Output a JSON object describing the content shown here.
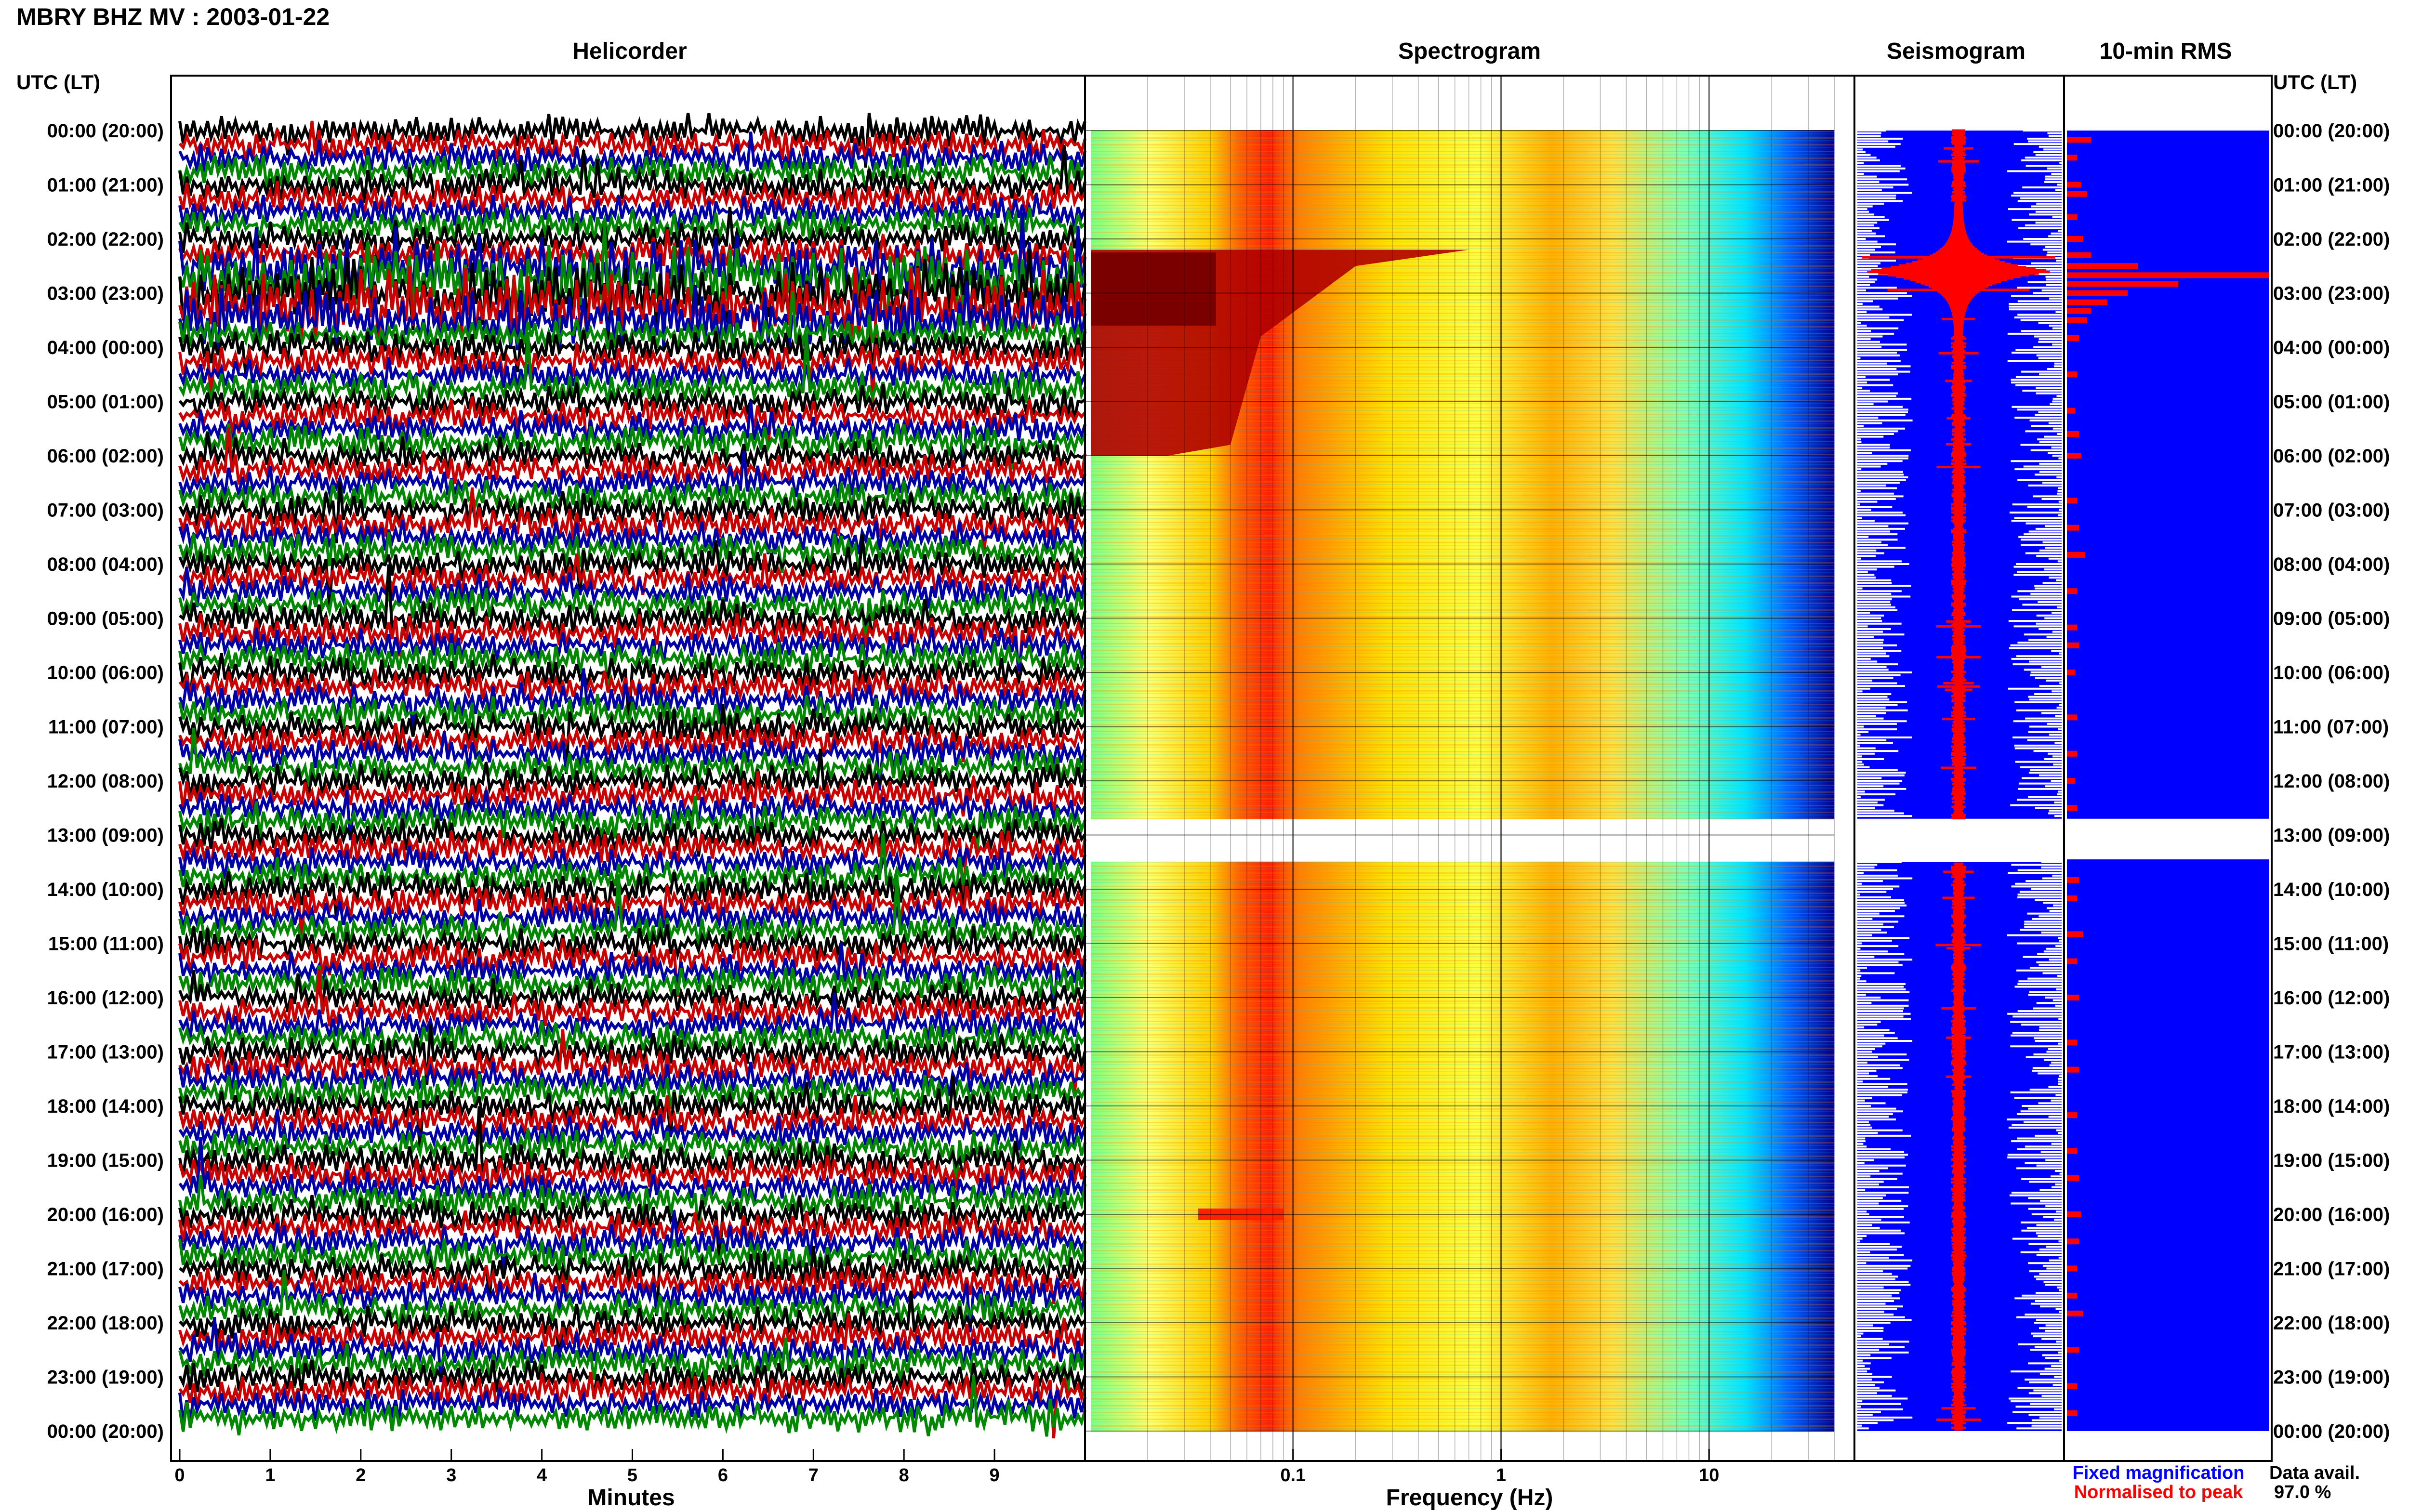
{
  "header": {
    "title": "MBRY BHZ MV : 2003-01-22",
    "tz_label_left": "UTC (LT)",
    "tz_label_right": "UTC (LT)"
  },
  "panels": {
    "helicorder": "Helicorder",
    "spectrogram": "Spectrogram",
    "seismogram": "Seismogram",
    "rms": "10-min RMS"
  },
  "axes": {
    "helicorder_xlabel": "Minutes",
    "spectrogram_xlabel": "Frequency (Hz)"
  },
  "legend": {
    "fixed": "Fixed magnification",
    "normalised": "Normalised to peak",
    "fixed_color": "#0000ff",
    "normalised_color": "#ff0000"
  },
  "data_availability": {
    "label": "Data avail.",
    "value": "97.0 %"
  },
  "chart_data": {
    "type": "heatmap",
    "title": "MBRY BHZ MV : 2003-01-22",
    "time_labels": [
      "00:00 (20:00)",
      "01:00 (21:00)",
      "02:00 (22:00)",
      "03:00 (23:00)",
      "04:00 (00:00)",
      "05:00 (01:00)",
      "06:00 (02:00)",
      "07:00 (03:00)",
      "08:00 (04:00)",
      "09:00 (05:00)",
      "10:00 (06:00)",
      "11:00 (07:00)",
      "12:00 (08:00)",
      "13:00 (09:00)",
      "14:00 (10:00)",
      "15:00 (11:00)",
      "16:00 (12:00)",
      "17:00 (13:00)",
      "18:00 (14:00)",
      "19:00 (15:00)",
      "20:00 (16:00)",
      "21:00 (17:00)",
      "22:00 (18:00)",
      "23:00 (19:00)",
      "00:00 (20:00)"
    ],
    "helicorder": {
      "xlabel": "Minutes",
      "x_ticks": [
        "0",
        "1",
        "2",
        "3",
        "4",
        "5",
        "6",
        "7",
        "8",
        "9"
      ],
      "xlim": [
        0,
        10
      ],
      "trace_colors": [
        "#000000",
        "#cc0000",
        "#0000aa",
        "#008800"
      ]
    },
    "spectrogram": {
      "xlabel": "Frequency (Hz)",
      "x_scale": "log",
      "x_ticks": [
        "0.1",
        "1",
        "10"
      ],
      "xlim": [
        0.01,
        50
      ],
      "colormap": [
        "#00008b",
        "#0000ff",
        "#00bfff",
        "#00ffff",
        "#7fff7f",
        "#ffff00",
        "#ff7f00",
        "#ff0000",
        "#8b0000"
      ],
      "data_gap_hours": [
        12.7,
        13.5
      ]
    },
    "seismogram": {
      "series": [
        {
          "name": "Fixed magnification",
          "color": "#0000ff"
        },
        {
          "name": "Normalised to peak",
          "color": "#ff0000"
        }
      ],
      "peak_event_hour": 2.6
    },
    "rms_10min": {
      "ylim_hours": [
        0,
        24
      ],
      "bars": [
        {
          "hour": 0.17,
          "value": 0.12
        },
        {
          "hour": 0.5,
          "value": 0.05
        },
        {
          "hour": 1.0,
          "value": 0.07
        },
        {
          "hour": 1.17,
          "value": 0.1
        },
        {
          "hour": 1.6,
          "value": 0.05
        },
        {
          "hour": 2.0,
          "value": 0.08
        },
        {
          "hour": 2.3,
          "value": 0.12
        },
        {
          "hour": 2.5,
          "value": 0.35
        },
        {
          "hour": 2.67,
          "value": 1.0
        },
        {
          "hour": 2.83,
          "value": 0.55
        },
        {
          "hour": 3.0,
          "value": 0.3
        },
        {
          "hour": 3.17,
          "value": 0.2
        },
        {
          "hour": 3.33,
          "value": 0.12
        },
        {
          "hour": 3.5,
          "value": 0.1
        },
        {
          "hour": 3.83,
          "value": 0.06
        },
        {
          "hour": 4.5,
          "value": 0.05
        },
        {
          "hour": 5.17,
          "value": 0.04
        },
        {
          "hour": 5.6,
          "value": 0.06
        },
        {
          "hour": 6.0,
          "value": 0.07
        },
        {
          "hour": 6.83,
          "value": 0.05
        },
        {
          "hour": 7.33,
          "value": 0.06
        },
        {
          "hour": 7.83,
          "value": 0.09
        },
        {
          "hour": 8.5,
          "value": 0.05
        },
        {
          "hour": 9.17,
          "value": 0.05
        },
        {
          "hour": 9.5,
          "value": 0.06
        },
        {
          "hour": 10.0,
          "value": 0.04
        },
        {
          "hour": 10.83,
          "value": 0.05
        },
        {
          "hour": 11.5,
          "value": 0.05
        },
        {
          "hour": 12.0,
          "value": 0.04
        },
        {
          "hour": 12.5,
          "value": 0.05
        },
        {
          "hour": 13.83,
          "value": 0.06
        },
        {
          "hour": 14.17,
          "value": 0.05
        },
        {
          "hour": 14.83,
          "value": 0.08
        },
        {
          "hour": 15.33,
          "value": 0.05
        },
        {
          "hour": 16.0,
          "value": 0.06
        },
        {
          "hour": 16.83,
          "value": 0.05
        },
        {
          "hour": 17.33,
          "value": 0.06
        },
        {
          "hour": 18.17,
          "value": 0.05
        },
        {
          "hour": 18.83,
          "value": 0.05
        },
        {
          "hour": 19.33,
          "value": 0.06
        },
        {
          "hour": 20.0,
          "value": 0.07
        },
        {
          "hour": 20.5,
          "value": 0.06
        },
        {
          "hour": 21.0,
          "value": 0.05
        },
        {
          "hour": 21.5,
          "value": 0.05
        },
        {
          "hour": 21.83,
          "value": 0.08
        },
        {
          "hour": 22.5,
          "value": 0.06
        },
        {
          "hour": 23.17,
          "value": 0.05
        },
        {
          "hour": 23.67,
          "value": 0.05
        }
      ]
    }
  }
}
